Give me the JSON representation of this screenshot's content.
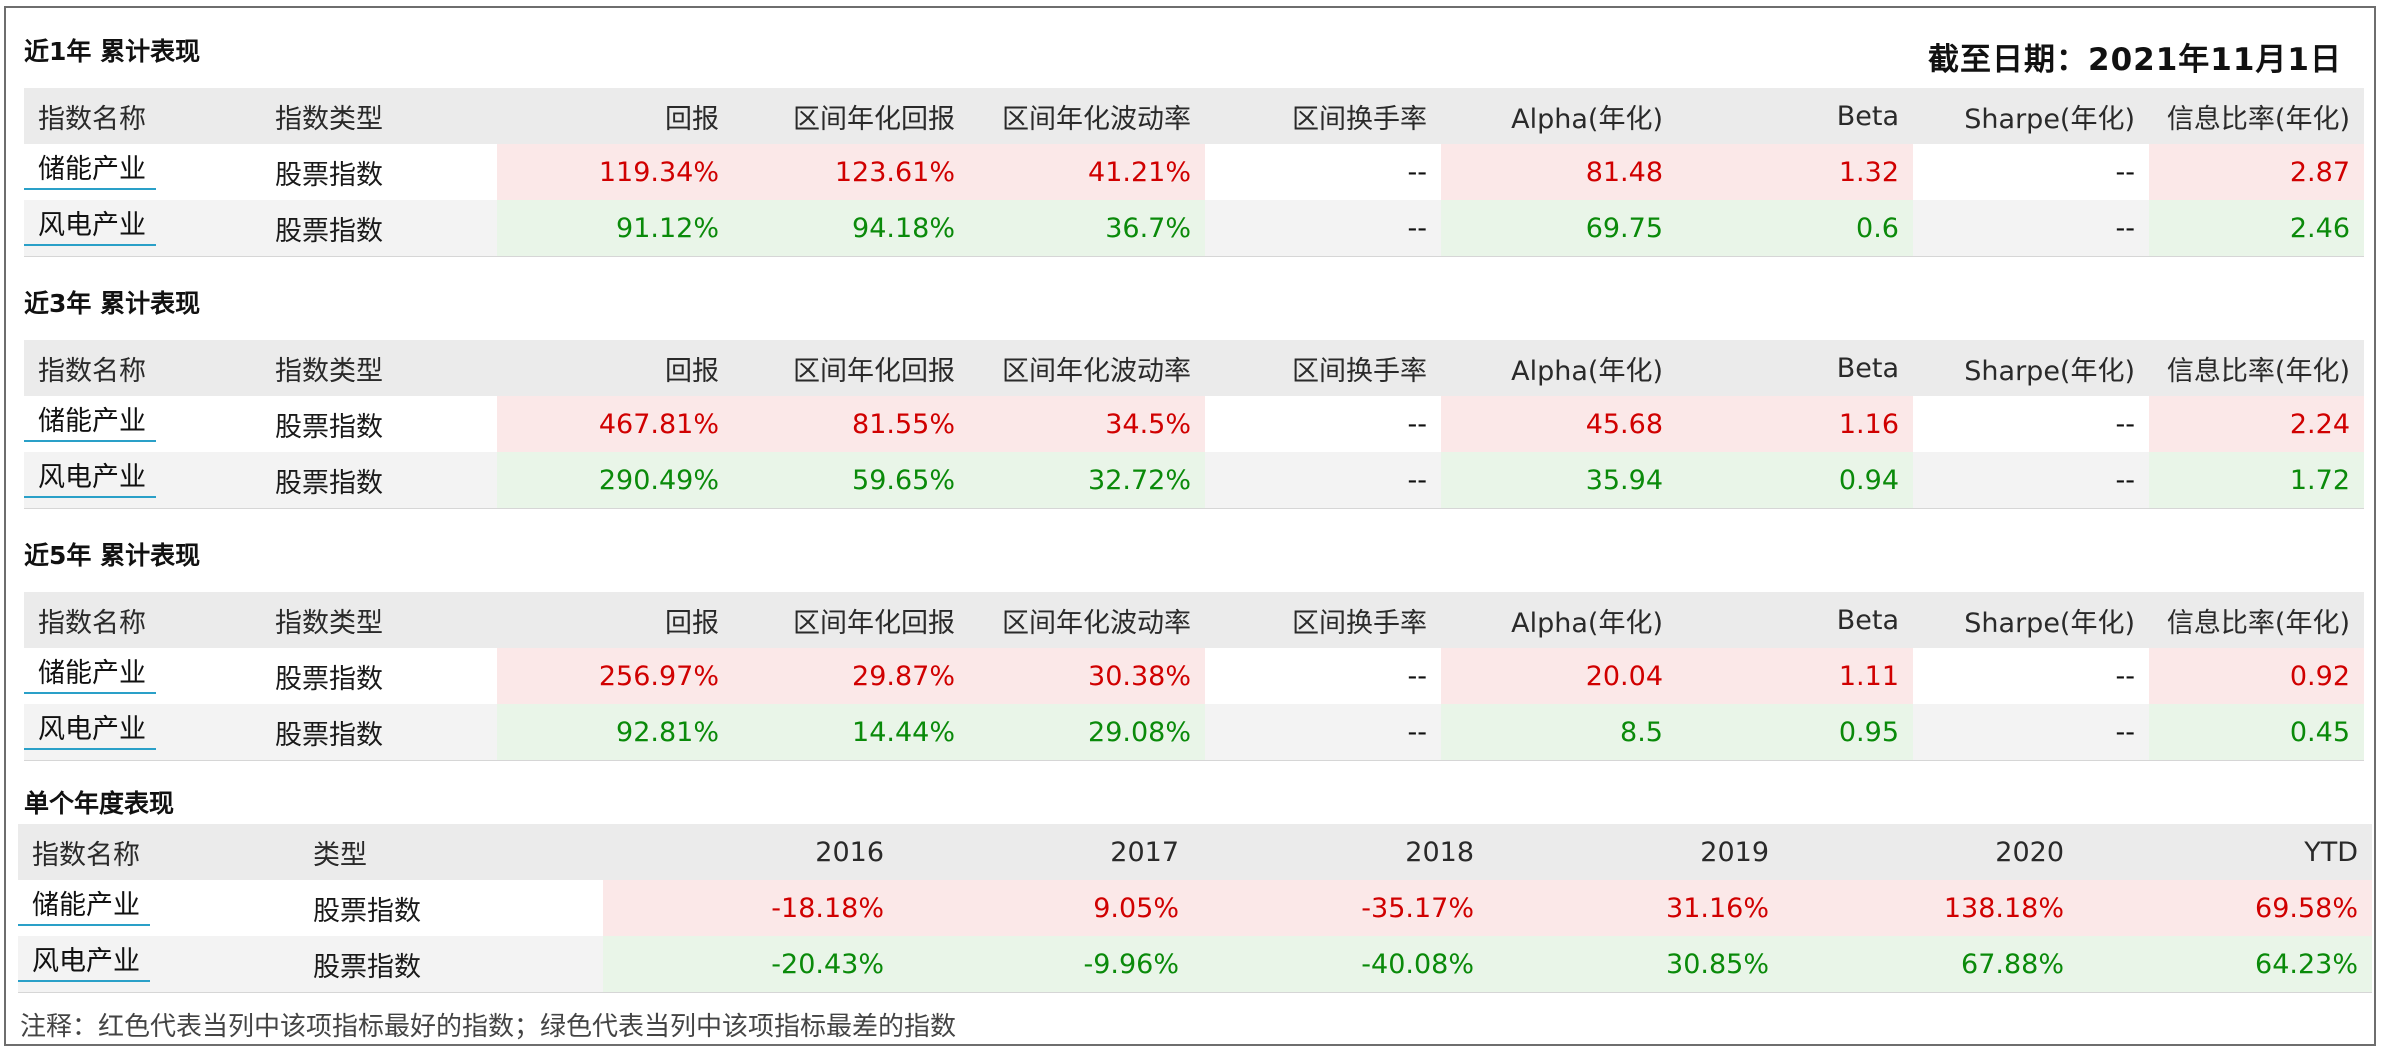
{
  "as_of": "截至日期：2021年11月1日",
  "headers": [
    "指数名称",
    "指数类型",
    "回报",
    "区间年化回报",
    "区间年化波动率",
    "区间换手率",
    "Alpha(年化)",
    "Beta",
    "Sharpe(年化)",
    "信息比率(年化)"
  ],
  "sections": [
    {
      "title": "近1年 累计表现",
      "rows": [
        {
          "name": "储能产业",
          "type": "股票指数",
          "ret": "119.34%",
          "ann_ret": "123.61%",
          "vol": "41.21%",
          "turnover": "--",
          "alpha": "81.48",
          "beta": "1.32",
          "sharpe": "--",
          "ir": "2.87"
        },
        {
          "name": "风电产业",
          "type": "股票指数",
          "ret": "91.12%",
          "ann_ret": "94.18%",
          "vol": "36.7%",
          "turnover": "--",
          "alpha": "69.75",
          "beta": "0.6",
          "sharpe": "--",
          "ir": "2.46"
        }
      ]
    },
    {
      "title": "近3年 累计表现",
      "rows": [
        {
          "name": "储能产业",
          "type": "股票指数",
          "ret": "467.81%",
          "ann_ret": "81.55%",
          "vol": "34.5%",
          "turnover": "--",
          "alpha": "45.68",
          "beta": "1.16",
          "sharpe": "--",
          "ir": "2.24"
        },
        {
          "name": "风电产业",
          "type": "股票指数",
          "ret": "290.49%",
          "ann_ret": "59.65%",
          "vol": "32.72%",
          "turnover": "--",
          "alpha": "35.94",
          "beta": "0.94",
          "sharpe": "--",
          "ir": "1.72"
        }
      ]
    },
    {
      "title": "近5年 累计表现",
      "rows": [
        {
          "name": "储能产业",
          "type": "股票指数",
          "ret": "256.97%",
          "ann_ret": "29.87%",
          "vol": "30.38%",
          "turnover": "--",
          "alpha": "20.04",
          "beta": "1.11",
          "sharpe": "--",
          "ir": "0.92"
        },
        {
          "name": "风电产业",
          "type": "股票指数",
          "ret": "92.81%",
          "ann_ret": "14.44%",
          "vol": "29.08%",
          "turnover": "--",
          "alpha": "8.5",
          "beta": "0.95",
          "sharpe": "--",
          "ir": "0.45"
        }
      ]
    }
  ],
  "annual": {
    "title": "单个年度表现",
    "headers": [
      "指数名称",
      "类型",
      "2016",
      "2017",
      "2018",
      "2019",
      "2020",
      "YTD"
    ],
    "rows": [
      {
        "name": "储能产业",
        "type": "股票指数",
        "values": [
          "-18.18%",
          "9.05%",
          "-35.17%",
          "31.16%",
          "138.18%",
          "69.58%"
        ]
      },
      {
        "name": "风电产业",
        "type": "股票指数",
        "values": [
          "-20.43%",
          "-9.96%",
          "-40.08%",
          "30.85%",
          "67.88%",
          "64.23%"
        ]
      }
    ]
  },
  "footnote": "注释：红色代表当列中该项指标最好的指数；绿色代表当列中该项指标最差的指数",
  "colors": {
    "best": "#d00000",
    "worst": "#0a8a0a",
    "best_bg": "#fbe8e8",
    "worst_bg": "#e9f5e8",
    "header_bg": "#ebebeb"
  }
}
